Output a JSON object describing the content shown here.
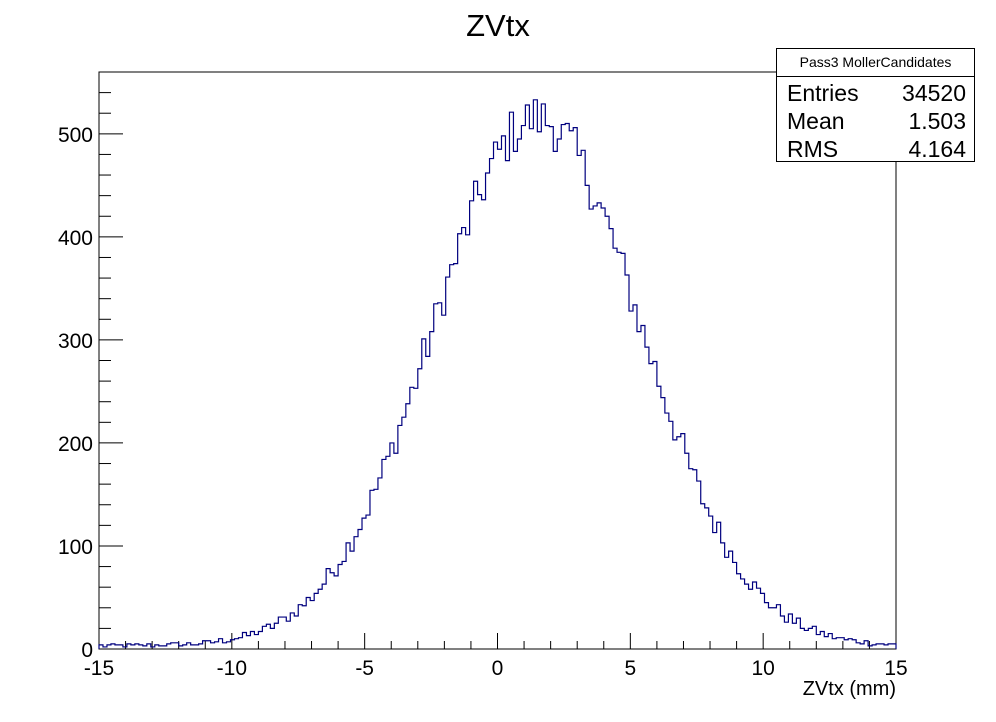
{
  "chart_data": {
    "type": "histogram",
    "title": "ZVtx",
    "xlabel": "ZVtx (mm)",
    "ylabel": "",
    "xlim": [
      -15,
      15
    ],
    "ylim": [
      0,
      560
    ],
    "x_ticks": [
      -15,
      -10,
      -5,
      0,
      5,
      10,
      15
    ],
    "y_ticks": [
      0,
      100,
      200,
      300,
      400,
      500
    ],
    "bin_width": 0.15,
    "line_color": "#00007f",
    "stats": {
      "title": "Pass3 MollerCandidates",
      "entries_label": "Entries",
      "entries": "34520",
      "mean_label": "Mean",
      "mean": "1.503",
      "rms_label": "RMS",
      "rms": "4.164"
    }
  }
}
